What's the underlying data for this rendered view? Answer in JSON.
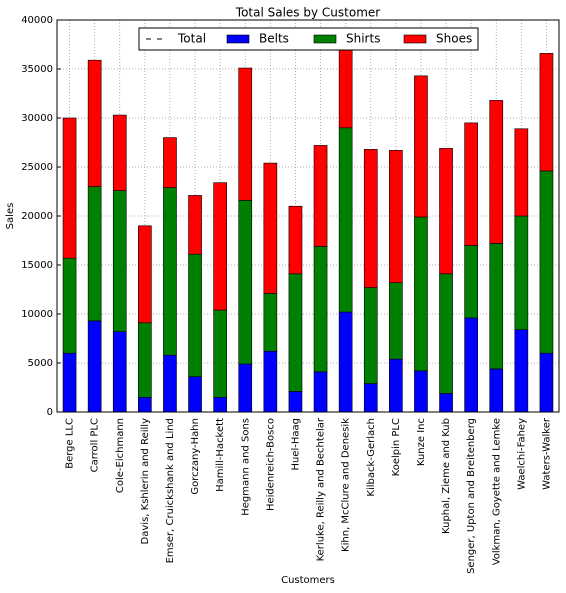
{
  "chart_data": {
    "type": "stacked-bar",
    "title": "Total Sales by Customer",
    "x_label": "Customers",
    "y_label": "Sales",
    "categories": [
      "Berge LLC",
      "Carroll PLC",
      "Cole-Eichmann",
      "Davis, Kshlerin and Reilly",
      "Emser, Cruickshank and Lind",
      "Gorczany-Hahn",
      "Hamill-Hackett",
      "Hegmann and Sons",
      "Heidenreich-Bosco",
      "Huel-Haag",
      "Kerluke, Reilly and Bechtelar",
      "Kihn, McClure and Denesik",
      "Kilback-Gerlach",
      "Koelpin PLC",
      "Kunze Inc",
      "Kuphal, Zieme and Kub",
      "Senger, Upton and Breitenberg",
      "Volkman, Goyette and Lemke",
      "Waelchi-Fahey",
      "Waters-Walker"
    ],
    "series": [
      {
        "name": "Total",
        "color": "#000000",
        "dash": "--"
      },
      {
        "name": "Belts",
        "color": "#0000ff",
        "values": [
          6000,
          9300,
          8200,
          1500,
          5800,
          3600,
          1500,
          4900,
          6200,
          2100,
          4100,
          10200,
          2900,
          5400,
          4200,
          1900,
          9600,
          4400,
          8400,
          6000
        ]
      },
      {
        "name": "Shirts",
        "color": "#008000",
        "values": [
          9700,
          13700,
          14400,
          7600,
          17100,
          12500,
          8900,
          16700,
          5900,
          12000,
          12800,
          18800,
          9800,
          7800,
          15700,
          12200,
          7400,
          12800,
          11600,
          18600
        ]
      },
      {
        "name": "Shoes",
        "color": "#ff0000",
        "values": [
          14300,
          12900,
          7700,
          9900,
          5100,
          6000,
          13000,
          13500,
          13300,
          6900,
          10300,
          9500,
          14100,
          13500,
          14400,
          12800,
          12500,
          14600,
          8900,
          12000
        ]
      }
    ],
    "ylim": [
      0,
      40000
    ],
    "yticks": [
      0,
      5000,
      10000,
      15000,
      20000,
      25000,
      30000,
      35000,
      40000
    ],
    "grid": true,
    "legend": "upper center"
  }
}
